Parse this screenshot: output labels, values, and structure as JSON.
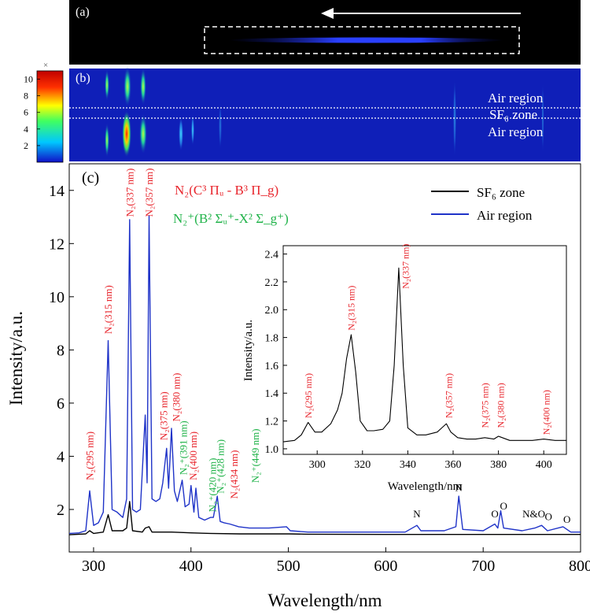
{
  "colors": {
    "sf6_line": "#000000",
    "air_line": "#1f33c8",
    "n2_label": "#e8262d",
    "n2plus_label": "#21b34a",
    "panel_bg": "#0f1fb8",
    "panel_a_bg": "#000000"
  },
  "chart_data": [
    {
      "type": "heatmap",
      "panel": "a",
      "panel_label": "(a)",
      "annotations": [
        "arrow pointing left",
        "dashed box around emission region"
      ]
    },
    {
      "type": "heatmap",
      "panel": "b",
      "panel_label": "(b)",
      "colorbar": {
        "multiplier": "×",
        "ticks": [
          "10",
          "8",
          "6",
          "4",
          "2"
        ],
        "range": [
          0,
          11
        ],
        "colors": [
          "#1010c8",
          "#00c8ff",
          "#40ff60",
          "#ffff00",
          "#ff3000",
          "#c00000"
        ]
      },
      "region_labels": [
        "Air region",
        "SF₆ zone",
        "Air region"
      ]
    },
    {
      "type": "line",
      "panel": "c",
      "panel_label": "(c)",
      "xlabel": "Wavelength/nm",
      "ylabel": "Intensity/a.u.",
      "xlim": [
        275,
        800
      ],
      "ylim": [
        0.4,
        15
      ],
      "x_ticks": [
        300,
        400,
        500,
        600,
        700,
        800
      ],
      "y_ticks": [
        2,
        4,
        6,
        8,
        10,
        12,
        14
      ],
      "legend": {
        "placement": "top-right",
        "entries": [
          "SF₆ zone",
          "Air region"
        ]
      },
      "band_legend": {
        "n2": "N₂(C³ Πᵤ - B³ Π_g)",
        "n2plus": "N₂⁺(B² Σᵤ⁺-X² Σ_g⁺)"
      },
      "series": [
        {
          "name": "Air region",
          "color": "#1f33c8",
          "points": [
            [
              275,
              1.1
            ],
            [
              285,
              1.12
            ],
            [
              292,
              1.2
            ],
            [
              296,
              2.7
            ],
            [
              300,
              1.4
            ],
            [
              305,
              1.5
            ],
            [
              310,
              1.9
            ],
            [
              315,
              8.35
            ],
            [
              319,
              2.0
            ],
            [
              324,
              1.9
            ],
            [
              330,
              1.7
            ],
            [
              334,
              2.4
            ],
            [
              337,
              12.9
            ],
            [
              340,
              2.0
            ],
            [
              344,
              1.9
            ],
            [
              348,
              2.0
            ],
            [
              353,
              5.55
            ],
            [
              355,
              3.0
            ],
            [
              357,
              13.05
            ],
            [
              360,
              2.4
            ],
            [
              364,
              2.3
            ],
            [
              368,
              2.4
            ],
            [
              371,
              3.0
            ],
            [
              375,
              4.3
            ],
            [
              377,
              2.8
            ],
            [
              380,
              5.05
            ],
            [
              383,
              2.7
            ],
            [
              386,
              2.3
            ],
            [
              391,
              3.1
            ],
            [
              394,
              2.1
            ],
            [
              398,
              2.2
            ],
            [
              400,
              2.9
            ],
            [
              403,
              1.9
            ],
            [
              405,
              2.8
            ],
            [
              408,
              1.7
            ],
            [
              414,
              1.6
            ],
            [
              420,
              1.7
            ],
            [
              423,
              1.7
            ],
            [
              427,
              2.5
            ],
            [
              430,
              1.55
            ],
            [
              434,
              1.5
            ],
            [
              440,
              1.45
            ],
            [
              449,
              1.35
            ],
            [
              460,
              1.3
            ],
            [
              480,
              1.3
            ],
            [
              498,
              1.35
            ],
            [
              502,
              1.2
            ],
            [
              520,
              1.15
            ],
            [
              560,
              1.15
            ],
            [
              600,
              1.15
            ],
            [
              620,
              1.15
            ],
            [
              632,
              1.4
            ],
            [
              636,
              1.2
            ],
            [
              660,
              1.2
            ],
            [
              672,
              1.35
            ],
            [
              675,
              2.5
            ],
            [
              679,
              1.25
            ],
            [
              700,
              1.2
            ],
            [
              712,
              1.45
            ],
            [
              715,
              1.3
            ],
            [
              718,
              1.95
            ],
            [
              721,
              1.3
            ],
            [
              740,
              1.2
            ],
            [
              753,
              1.3
            ],
            [
              760,
              1.4
            ],
            [
              766,
              1.2
            ],
            [
              782,
              1.35
            ],
            [
              790,
              1.15
            ],
            [
              800,
              1.15
            ]
          ]
        },
        {
          "name": "SF₆ zone",
          "color": "#000000",
          "points": [
            [
              275,
              1.05
            ],
            [
              292,
              1.08
            ],
            [
              296,
              1.2
            ],
            [
              300,
              1.1
            ],
            [
              310,
              1.15
            ],
            [
              315,
              1.8
            ],
            [
              319,
              1.2
            ],
            [
              330,
              1.2
            ],
            [
              334,
              1.3
            ],
            [
              337,
              2.3
            ],
            [
              340,
              1.2
            ],
            [
              350,
              1.15
            ],
            [
              353,
              1.3
            ],
            [
              357,
              1.35
            ],
            [
              360,
              1.15
            ],
            [
              375,
              1.15
            ],
            [
              380,
              1.15
            ],
            [
              400,
              1.12
            ],
            [
              420,
              1.1
            ],
            [
              450,
              1.08
            ],
            [
              500,
              1.08
            ],
            [
              520,
              1.07
            ],
            [
              600,
              1.06
            ],
            [
              700,
              1.06
            ],
            [
              800,
              1.06
            ]
          ]
        }
      ],
      "annotations": [
        {
          "text": "N₂(295 nm)",
          "group": "n2",
          "x": 296,
          "y": 3.1
        },
        {
          "text": "N₂(315 nm)",
          "group": "n2",
          "x": 315,
          "y": 8.6
        },
        {
          "text": "N₂(337 nm)",
          "group": "n2",
          "x": 337,
          "y": 13.0
        },
        {
          "text": "N₂(357 nm)",
          "group": "n2",
          "x": 357,
          "y": 13.0
        },
        {
          "text": "N₂(375 nm)",
          "group": "n2",
          "x": 372,
          "y": 4.6
        },
        {
          "text": "N₂(380 nm)",
          "group": "n2",
          "x": 385,
          "y": 5.3
        },
        {
          "text": "N₂⁺(391 nm)",
          "group": "n2plus",
          "x": 392,
          "y": 3.3
        },
        {
          "text": "N₂(400 nm)",
          "group": "n2",
          "x": 402,
          "y": 3.1
        },
        {
          "text": "N₂⁺(420 nm)",
          "group": "n2plus",
          "x": 422,
          "y": 1.9
        },
        {
          "text": "N₂⁺(428 nm)",
          "group": "n2plus",
          "x": 430,
          "y": 2.6
        },
        {
          "text": "N₂(434 nm)",
          "group": "n2",
          "x": 444,
          "y": 2.4
        },
        {
          "text": "N₂⁺(449 nm)",
          "group": "n2plus",
          "x": 466,
          "y": 3.0
        },
        {
          "text": "N",
          "group": "atom",
          "x": 632,
          "y": 1.7
        },
        {
          "text": "N",
          "group": "atom",
          "x": 675,
          "y": 2.7
        },
        {
          "text": "O",
          "group": "atom",
          "x": 712,
          "y": 1.7
        },
        {
          "text": "O",
          "group": "atom",
          "x": 721,
          "y": 2.0
        },
        {
          "text": "N&O",
          "group": "atom",
          "x": 752,
          "y": 1.7
        },
        {
          "text": "O",
          "group": "atom",
          "x": 767,
          "y": 1.6
        },
        {
          "text": "O",
          "group": "atom",
          "x": 786,
          "y": 1.5
        }
      ]
    },
    {
      "type": "line",
      "panel": "c-inset",
      "xlabel": "Wavelength/nm",
      "ylabel": "Intensity/a.u.",
      "xlim": [
        285,
        410
      ],
      "ylim": [
        0.96,
        2.46
      ],
      "x_ticks": [
        300,
        320,
        340,
        360,
        380,
        400
      ],
      "y_ticks": [
        1.0,
        1.2,
        1.4,
        1.6,
        1.8,
        2.0,
        2.2,
        2.4
      ],
      "series": [
        {
          "name": "SF₆ zone",
          "color": "#000000",
          "points": [
            [
              285,
              1.05
            ],
            [
              290,
              1.06
            ],
            [
              293,
              1.1
            ],
            [
              296,
              1.19
            ],
            [
              299,
              1.12
            ],
            [
              302,
              1.12
            ],
            [
              306,
              1.18
            ],
            [
              309,
              1.28
            ],
            [
              311,
              1.4
            ],
            [
              313,
              1.65
            ],
            [
              315,
              1.82
            ],
            [
              317,
              1.55
            ],
            [
              319,
              1.2
            ],
            [
              322,
              1.13
            ],
            [
              325,
              1.13
            ],
            [
              329,
              1.14
            ],
            [
              332,
              1.2
            ],
            [
              334,
              1.6
            ],
            [
              336,
              2.3
            ],
            [
              338,
              1.6
            ],
            [
              340,
              1.15
            ],
            [
              344,
              1.1
            ],
            [
              348,
              1.1
            ],
            [
              353,
              1.12
            ],
            [
              355,
              1.15
            ],
            [
              357,
              1.18
            ],
            [
              359,
              1.12
            ],
            [
              362,
              1.08
            ],
            [
              366,
              1.07
            ],
            [
              370,
              1.07
            ],
            [
              374,
              1.08
            ],
            [
              378,
              1.07
            ],
            [
              380,
              1.09
            ],
            [
              385,
              1.06
            ],
            [
              390,
              1.06
            ],
            [
              395,
              1.06
            ],
            [
              400,
              1.07
            ],
            [
              405,
              1.06
            ],
            [
              410,
              1.06
            ]
          ]
        }
      ],
      "annotations": [
        {
          "text": "N₂(295 nm)",
          "group": "n2",
          "x": 296,
          "y": 1.22
        },
        {
          "text": "N₂(315 nm)",
          "group": "n2",
          "x": 315,
          "y": 1.85
        },
        {
          "text": "N₂(337 nm)",
          "group": "n2",
          "x": 339,
          "y": 2.15
        },
        {
          "text": "N₂(357 nm)",
          "group": "n2",
          "x": 358,
          "y": 1.22
        },
        {
          "text": "N₂(375 nm)",
          "group": "n2",
          "x": 374,
          "y": 1.15
        },
        {
          "text": "N₂(380 nm)",
          "group": "n2",
          "x": 381,
          "y": 1.15
        },
        {
          "text": "N₂(400 nm)",
          "group": "n2",
          "x": 401,
          "y": 1.1
        }
      ]
    }
  ]
}
